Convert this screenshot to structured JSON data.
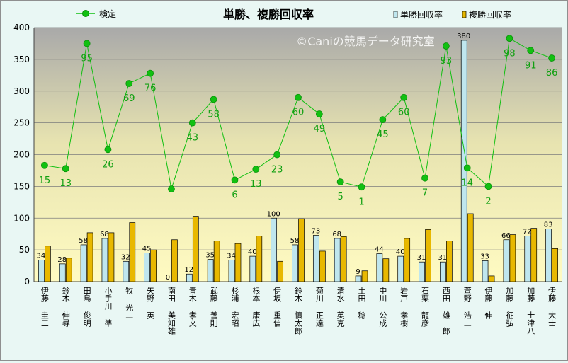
{
  "chart_data": {
    "type": "bar+line",
    "title": "単勝、複勝回収率",
    "watermark": "©Caniの競馬データ研究室",
    "ylim": [
      0,
      400
    ],
    "yticks": [
      0,
      50,
      100,
      150,
      200,
      250,
      300,
      350,
      400
    ],
    "grid": true,
    "legend_placement": "top",
    "categories": [
      "伊藤 圭三",
      "鈴木 伸尋",
      "田島 俊明",
      "小手川 準",
      "牧 光二",
      "矢野 英一",
      "南田 美知雄",
      "青木 孝文",
      "武藤 善則",
      "杉浦 宏昭",
      "根本 康広",
      "伊坂 重信",
      "鈴木 慎太郎",
      "菊川 正達",
      "清水 英克",
      "土田 稔",
      "中川 公成",
      "岩戸 孝樹",
      "石栗 龍彦",
      "西田 雄一郎",
      "萱野 浩二",
      "伊藤 伸一",
      "加藤 征弘",
      "加藤 士津八",
      "伊藤 大士"
    ],
    "series": [
      {
        "name": "単勝回収率",
        "kind": "bar",
        "color": "#bfe6ee",
        "values": [
          34,
          28,
          58,
          68,
          32,
          45,
          0,
          12,
          35,
          34,
          40,
          100,
          58,
          73,
          68,
          9,
          44,
          40,
          31,
          31,
          380,
          33,
          66,
          72,
          83
        ]
      },
      {
        "name": "複勝回収率",
        "kind": "bar",
        "color": "#e8b800",
        "values": [
          56,
          37,
          77,
          77,
          93,
          50,
          66,
          103,
          64,
          60,
          72,
          32,
          99,
          48,
          71,
          17,
          36,
          68,
          82,
          64,
          107,
          9,
          74,
          84,
          52
        ]
      },
      {
        "name": "検定",
        "kind": "line",
        "color": "#11c011",
        "values": [
          183,
          178,
          375,
          208,
          312,
          328,
          146,
          250,
          287,
          160,
          177,
          200,
          290,
          264,
          157,
          149,
          255,
          290,
          163,
          371,
          179,
          150,
          383,
          364,
          352
        ],
        "labels": [
          15,
          13,
          95,
          26,
          69,
          76,
          null,
          43,
          58,
          6,
          13,
          23,
          60,
          49,
          5,
          1,
          45,
          60,
          7,
          93,
          14,
          2,
          98,
          91,
          86
        ]
      }
    ]
  }
}
